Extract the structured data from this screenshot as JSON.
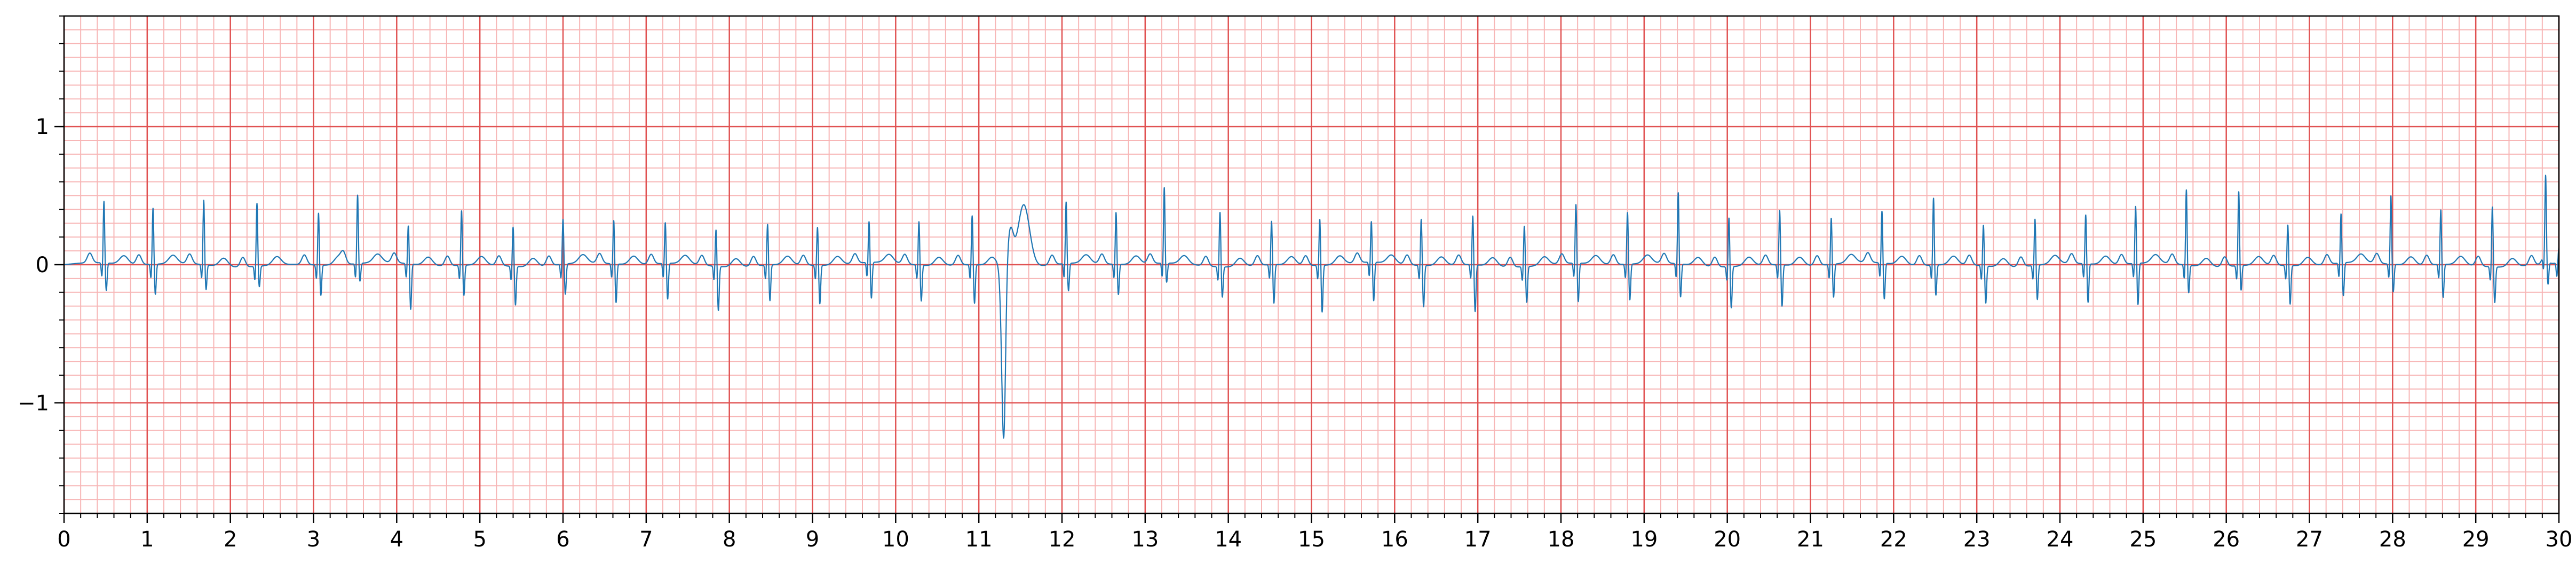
{
  "chart_data": {
    "type": "line",
    "title": "",
    "xlabel": "",
    "ylabel": "",
    "xlim": [
      0,
      30
    ],
    "ylim": [
      -1.8,
      1.8
    ],
    "x_ticks": [
      0,
      1,
      2,
      3,
      4,
      5,
      6,
      7,
      8,
      9,
      10,
      11,
      12,
      13,
      14,
      15,
      16,
      17,
      18,
      19,
      20,
      21,
      22,
      23,
      24,
      25,
      26,
      27,
      28,
      29,
      30
    ],
    "x_tick_labels": [
      "0",
      "1",
      "2",
      "3",
      "4",
      "5",
      "6",
      "7",
      "8",
      "9",
      "10",
      "11",
      "12",
      "13",
      "14",
      "15",
      "16",
      "17",
      "18",
      "19",
      "20",
      "21",
      "22",
      "23",
      "24",
      "25",
      "26",
      "27",
      "28",
      "29",
      "30"
    ],
    "y_ticks": [
      -1,
      0,
      1
    ],
    "y_tick_labels": [
      "−1",
      "0",
      "1"
    ],
    "grid": {
      "major": true,
      "minor": true,
      "major_step_x": 1,
      "minor_step_x": 0.2,
      "major_step_y": 1,
      "minor_step_y": 0.1,
      "major_color": "#e05252",
      "minor_color": "#f7b6b6"
    },
    "line_color": "#1f77b4",
    "series": [
      {
        "beat_times": [
          0.48,
          1.07,
          1.68,
          2.32,
          3.06,
          3.53,
          4.14,
          4.78,
          5.4,
          6.0,
          6.61,
          7.23,
          7.84,
          8.46,
          9.06,
          9.68,
          10.28,
          10.92,
          11.3,
          12.05,
          12.65,
          13.23,
          13.9,
          14.52,
          15.1,
          15.72,
          16.32,
          16.94,
          17.56,
          18.18,
          18.8,
          19.41,
          20.02,
          20.63,
          21.25,
          21.86,
          22.48,
          23.08,
          23.7,
          24.31,
          24.91,
          25.52,
          26.15,
          26.74,
          27.38,
          27.98,
          28.58,
          29.2,
          29.84,
          30.0
        ],
        "r_peaks": [
          0.45,
          0.41,
          0.47,
          0.46,
          0.38,
          0.5,
          0.28,
          0.4,
          0.29,
          0.33,
          0.32,
          0.3,
          0.27,
          0.3,
          0.28,
          0.3,
          0.32,
          0.36,
          0.35,
          0.45,
          0.38,
          0.55,
          0.4,
          0.32,
          0.34,
          0.3,
          0.34,
          0.36,
          0.3,
          0.43,
          0.38,
          0.52,
          0.36,
          0.4,
          0.34,
          0.38,
          0.49,
          0.3,
          0.34,
          0.36,
          0.42,
          0.55,
          0.54,
          0.3,
          0.36,
          0.5,
          0.4,
          0.44,
          0.58,
          0.1
        ],
        "s_troughs": [
          -0.2,
          -0.22,
          -0.18,
          -0.15,
          -0.22,
          -0.13,
          -0.33,
          -0.22,
          -0.28,
          -0.22,
          -0.28,
          -0.26,
          -0.32,
          -0.26,
          -0.28,
          -0.26,
          -0.26,
          -0.28,
          -1.2,
          -0.2,
          -0.22,
          -0.14,
          -0.22,
          -0.28,
          -0.34,
          -0.28,
          -0.3,
          -0.34,
          -0.26,
          -0.28,
          -0.26,
          -0.24,
          -0.3,
          -0.3,
          -0.24,
          -0.26,
          -0.22,
          -0.27,
          -0.25,
          -0.28,
          -0.3,
          -0.2,
          -0.18,
          -0.28,
          -0.24,
          -0.2,
          -0.24,
          -0.26,
          -0.18,
          0.0
        ],
        "ectopic_index": 18
      }
    ]
  }
}
